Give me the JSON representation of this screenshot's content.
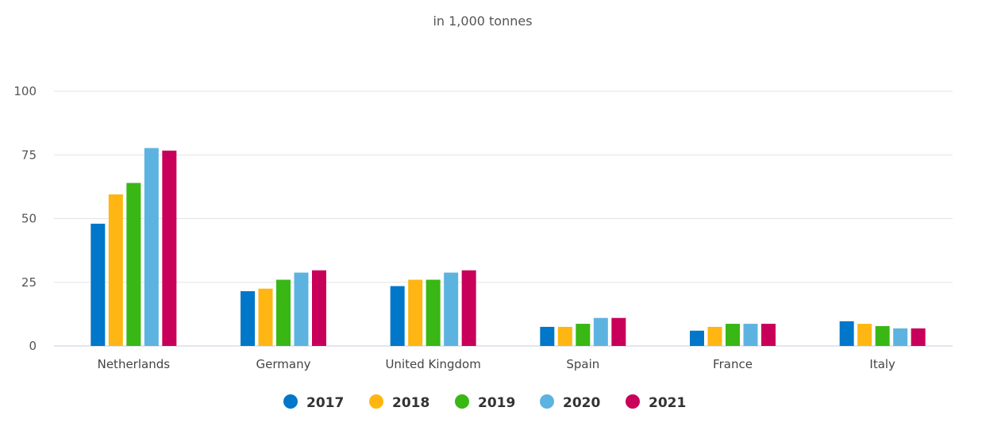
{
  "chart_data": {
    "type": "bar",
    "title": "in 1,000 tonnes",
    "xlabel": "",
    "ylabel": "",
    "ylim": [
      0,
      100
    ],
    "yticks": [
      0,
      25,
      50,
      75,
      100
    ],
    "grid": true,
    "legend_position": "bottom-center",
    "categories": [
      "Netherlands",
      "Germany",
      "United Kingdom",
      "Spain",
      "France",
      "Italy"
    ],
    "series": [
      {
        "name": "2017",
        "color": "#0077c8",
        "values": [
          48,
          21.5,
          23.5,
          7.5,
          6,
          9.7
        ]
      },
      {
        "name": "2018",
        "color": "#ffb612",
        "values": [
          59.5,
          22.5,
          26,
          7.5,
          7.5,
          8.7
        ]
      },
      {
        "name": "2019",
        "color": "#38b715",
        "values": [
          64,
          26,
          26,
          8.7,
          8.7,
          7.8
        ]
      },
      {
        "name": "2020",
        "color": "#5db3e0",
        "values": [
          77.7,
          28.8,
          28.8,
          11,
          8.7,
          6.9
        ]
      },
      {
        "name": "2021",
        "color": "#c8005a",
        "values": [
          76.7,
          29.7,
          29.7,
          11,
          8.7,
          6.9
        ]
      }
    ]
  }
}
